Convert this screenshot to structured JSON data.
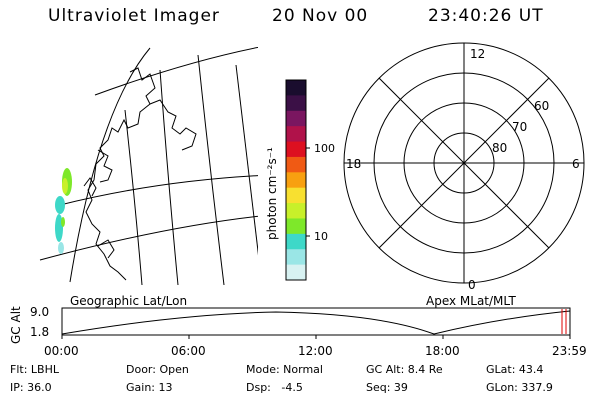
{
  "header": {
    "instrument": "Ultraviolet Imager",
    "date": "20 Nov 00",
    "time": "23:40:26 UT"
  },
  "colorbar": {
    "axis_label": "photon cm⁻²s⁻¹",
    "ticks": [
      "100",
      "10"
    ],
    "scale": "log",
    "colors": [
      "#1a0d2e",
      "#3b1046",
      "#7a1660",
      "#b0124a",
      "#dd1020",
      "#f05a14",
      "#f8a010",
      "#f8e030",
      "#c8f02a",
      "#7ee82a",
      "#3ed8c8",
      "#9ae6e6",
      "#d8f2f2"
    ]
  },
  "left_map": {
    "caption": "Geographic Lat/Lon"
  },
  "right_map": {
    "caption": "Apex MLat/MLT",
    "mlt_labels": [
      "12",
      "18",
      "6",
      "0"
    ],
    "lat_labels": [
      "60",
      "70",
      "80"
    ]
  },
  "timeline": {
    "ylabel": "GC Alt",
    "y_ticks": [
      "9.0",
      "1.8"
    ],
    "x_ticks": [
      "00:00",
      "06:00",
      "12:00",
      "18:00",
      "23:59"
    ],
    "current_marker_color": "#dd0000"
  },
  "footer": {
    "row1": [
      "Flt: LBHL",
      "Door: Open",
      "Mode: Normal",
      "GC Alt: 8.4 Re",
      "GLat: 43.4"
    ],
    "row2": [
      "IP: 36.0",
      "Gain: 13",
      "Dsp:   -4.5",
      "Seq: 39",
      "GLon: 337.9"
    ]
  }
}
